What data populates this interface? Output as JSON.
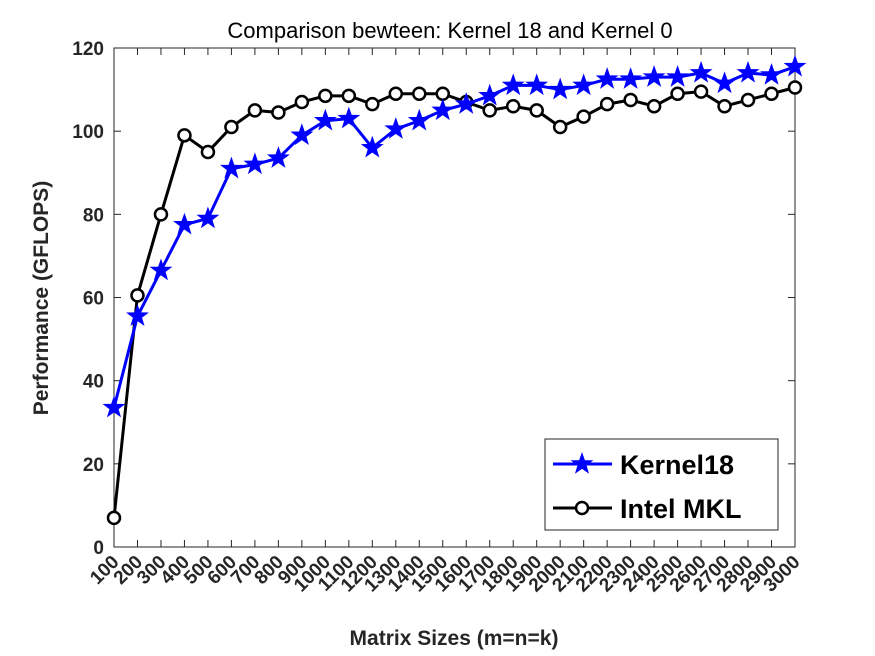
{
  "chart_data": {
    "type": "line",
    "title": "Comparison bewteen: Kernel 18 and Kernel 0",
    "xlabel": "Matrix Sizes (m=n=k)",
    "ylabel": "Performance (GFLOPS)",
    "xlim": [
      100,
      3000
    ],
    "ylim": [
      0,
      120
    ],
    "y_ticks": [
      0,
      20,
      40,
      60,
      80,
      100,
      120
    ],
    "categories": [
      "100",
      "200",
      "300",
      "400",
      "500",
      "600",
      "700",
      "800",
      "900",
      "1000",
      "1100",
      "1200",
      "1300",
      "1400",
      "1500",
      "1600",
      "1700",
      "1800",
      "1900",
      "2000",
      "2100",
      "2200",
      "2300",
      "2400",
      "2500",
      "2600",
      "2700",
      "2800",
      "2900",
      "3000"
    ],
    "grid": false,
    "legend_position": "bottom-right",
    "series": [
      {
        "name": "Kernel18",
        "color": "#0000ff",
        "marker": "star",
        "values": [
          33.5,
          55.5,
          66.5,
          77.5,
          79,
          91,
          92,
          93.5,
          99,
          102.5,
          103,
          96,
          100.5,
          102.5,
          105,
          106.5,
          108.5,
          111,
          111,
          110,
          111,
          112.5,
          112.5,
          113,
          113,
          114,
          111.5,
          114,
          113.5,
          115.5
        ]
      },
      {
        "name": "Intel MKL",
        "color": "#000000",
        "marker": "circle",
        "values": [
          7,
          60.5,
          80,
          99,
          95,
          101,
          105,
          104.5,
          107,
          108.5,
          108.5,
          106.5,
          109,
          109,
          109,
          107,
          105,
          106,
          105,
          101,
          103.5,
          106.5,
          107.5,
          106,
          109,
          109.5,
          106,
          107.5,
          109,
          110.5
        ]
      }
    ]
  }
}
